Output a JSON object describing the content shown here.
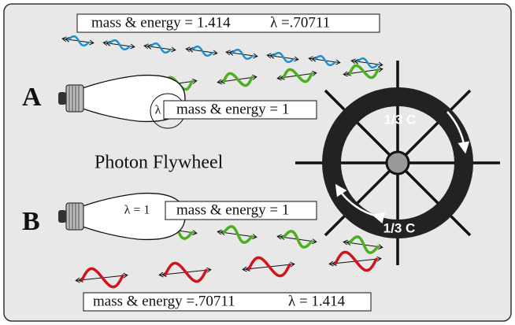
{
  "top_box": {
    "energy": "mass & energy = 1.414",
    "wavelength": "λ =.70711"
  },
  "row_a": {
    "label": "A",
    "bulb_wavelength": "λ = 1",
    "box": "mass & energy = 1"
  },
  "title": "Photon Flywheel",
  "wheel": {
    "top_speed": "1/3 C",
    "bottom_speed": "1/3 C"
  },
  "row_b": {
    "label": "B",
    "bulb_wavelength": "λ = 1",
    "box": "mass & energy = 1"
  },
  "bottom_box": {
    "energy": "mass & energy =.70711",
    "wavelength": "λ = 1.414"
  }
}
